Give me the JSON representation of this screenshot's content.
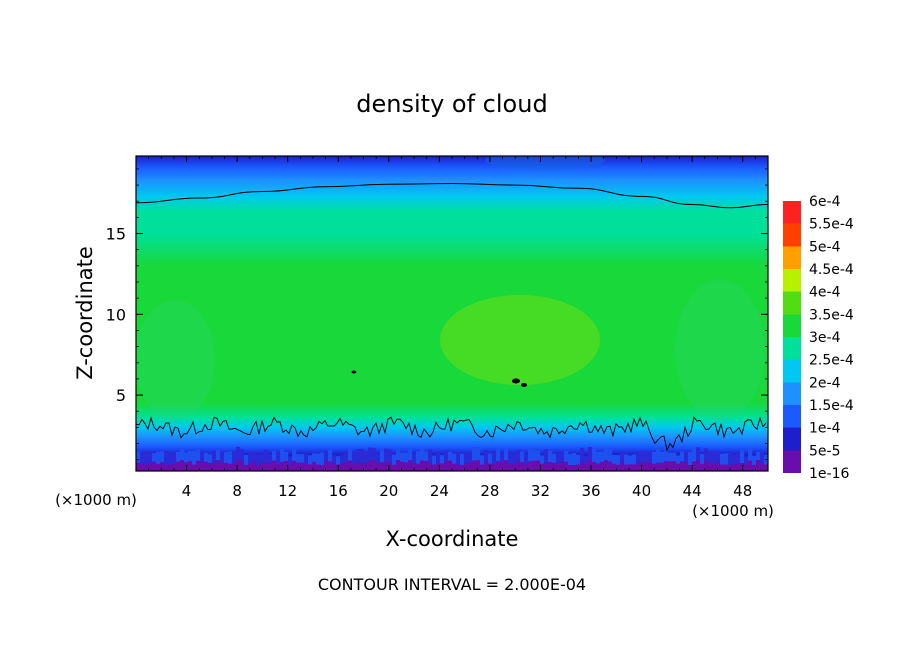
{
  "chart_data": {
    "type": "heatmap",
    "title": "density of cloud",
    "xlabel": "X-coordinate",
    "ylabel": "Z-coordinate",
    "x_unit_left": "(×1000 m)",
    "x_unit_right": "(×1000 m)",
    "xlim": [
      0,
      50
    ],
    "ylim": [
      0.3,
      19.8
    ],
    "x_ticks": [
      4,
      8,
      12,
      16,
      20,
      24,
      28,
      32,
      36,
      40,
      44,
      48
    ],
    "x_tick_labels": [
      "4",
      "8",
      "12",
      "16",
      "20",
      "24",
      "28",
      "32",
      "36",
      "40",
      "44",
      "48"
    ],
    "y_ticks": [
      5,
      10,
      15
    ],
    "y_tick_labels": [
      "5",
      "10",
      "15"
    ],
    "footer": "CONTOUR INTERVAL = 2.000E-04",
    "colorbar": {
      "levels": [
        {
          "label": "1e-16",
          "color": "#6a0dad"
        },
        {
          "label": "5e-5",
          "color": "#1e1ecc"
        },
        {
          "label": "1e-4",
          "color": "#1a5aff"
        },
        {
          "label": "1.5e-4",
          "color": "#1e90ff"
        },
        {
          "label": "2e-4",
          "color": "#00c8f0"
        },
        {
          "label": "2.5e-4",
          "color": "#00e09a"
        },
        {
          "label": "3e-4",
          "color": "#19d83a"
        },
        {
          "label": "3.5e-4",
          "color": "#52dc14"
        },
        {
          "label": "4e-4",
          "color": "#b8f000"
        },
        {
          "label": "4.5e-4",
          "color": "#ffa000"
        },
        {
          "label": "5e-4",
          "color": "#ff4000"
        },
        {
          "label": "5.5e-4",
          "color": "#ff2020"
        },
        {
          "label": "6e-4",
          "color": "#ff9090"
        }
      ]
    },
    "field_profile": {
      "z": [
        0.3,
        0.8,
        1.3,
        1.8,
        2.4,
        3.0,
        3.6,
        4.5,
        7.0,
        10.0,
        13.0,
        15.0,
        16.3,
        17.3,
        18.3,
        19.1,
        19.8
      ],
      "density": [
        1.2e-05,
        4e-05,
        8e-05,
        0.00012,
        0.00016,
        0.0002,
        0.00025,
        0.00031,
        0.00034,
        0.00033,
        0.00031,
        0.00028,
        0.00025,
        0.0002,
        0.00016,
        0.00012,
        9e-05
      ]
    },
    "contour_upper": {
      "x": [
        0,
        5,
        10,
        15,
        20,
        25,
        30,
        35,
        40,
        44,
        47,
        50
      ],
      "z": [
        16.9,
        17.2,
        17.6,
        17.9,
        18.05,
        18.1,
        18.0,
        17.8,
        17.3,
        16.8,
        16.6,
        16.8
      ]
    },
    "contour_lower_base_z": 3.0
  }
}
